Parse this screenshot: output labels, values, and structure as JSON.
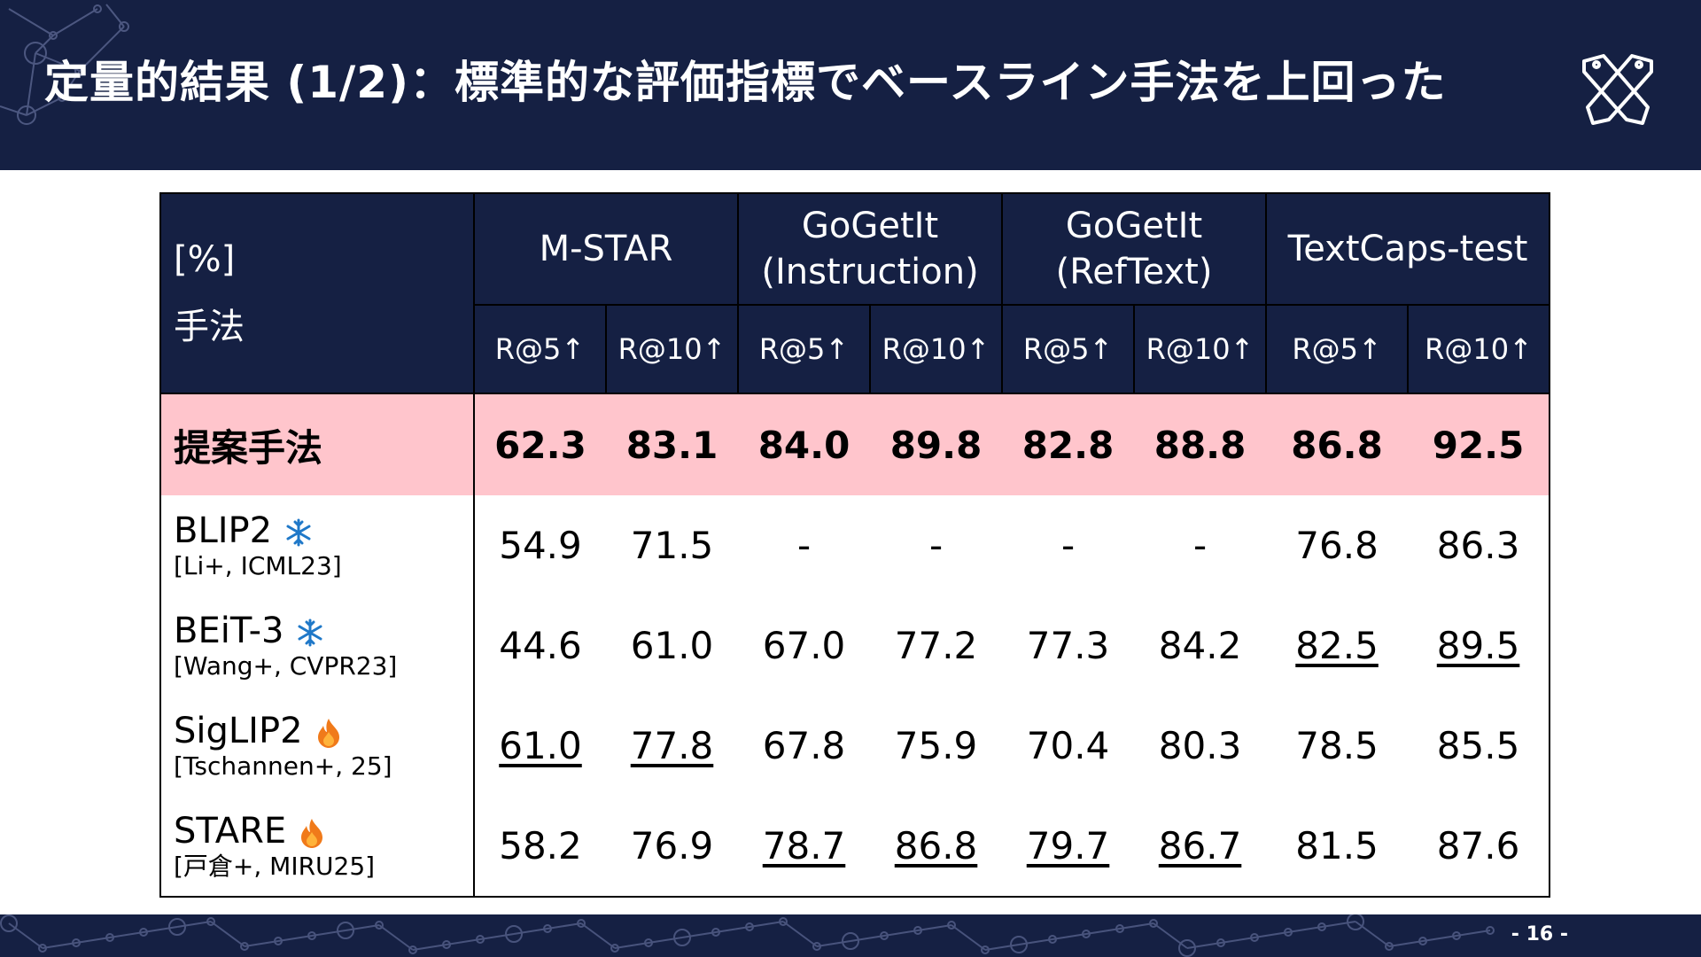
{
  "header": {
    "title": "定量的結果 (1/2)：標準的な評価指標でベースライン手法を上回った",
    "logo_icon": "crossed-tools-logo-icon"
  },
  "table": {
    "corner_unit": "[%]",
    "corner_label": "手法",
    "datasets": [
      {
        "name_line1": "M-STAR",
        "name_line2": ""
      },
      {
        "name_line1": "GoGetIt",
        "name_line2": "(Instruction)"
      },
      {
        "name_line1": "GoGetIt",
        "name_line2": "(RefText)"
      },
      {
        "name_line1": "TextCaps-test",
        "name_line2": ""
      }
    ],
    "metrics": [
      "R@5↑",
      "R@10↑",
      "R@5↑",
      "R@10↑",
      "R@5↑",
      "R@10↑",
      "R@5↑",
      "R@10↑"
    ],
    "proposed": {
      "name": "提案手法",
      "values": [
        "62.3",
        "83.1",
        "84.0",
        "89.8",
        "82.8",
        "88.8",
        "86.8",
        "92.5"
      ]
    },
    "baselines": [
      {
        "name": "BLIP2",
        "ref": "[Li+, ICML23]",
        "status_icon": "snowflake-icon",
        "values": [
          "54.9",
          "71.5",
          "-",
          "-",
          "-",
          "-",
          "76.8",
          "86.3"
        ],
        "underlined": [
          false,
          false,
          false,
          false,
          false,
          false,
          false,
          false
        ]
      },
      {
        "name": "BEiT-3",
        "ref": "[Wang+, CVPR23]",
        "status_icon": "snowflake-icon",
        "values": [
          "44.6",
          "61.0",
          "67.0",
          "77.2",
          "77.3",
          "84.2",
          "82.5",
          "89.5"
        ],
        "underlined": [
          false,
          false,
          false,
          false,
          false,
          false,
          true,
          true
        ]
      },
      {
        "name": "SigLIP2",
        "ref": "[Tschannen+, 25]",
        "status_icon": "fire-icon",
        "values": [
          "61.0",
          "77.8",
          "67.8",
          "75.9",
          "70.4",
          "80.3",
          "78.5",
          "85.5"
        ],
        "underlined": [
          true,
          true,
          false,
          false,
          false,
          false,
          false,
          false
        ]
      },
      {
        "name": "STARE",
        "ref": "[戸倉+, MIRU25]",
        "status_icon": "fire-icon",
        "values": [
          "58.2",
          "76.9",
          "78.7",
          "86.8",
          "79.7",
          "86.7",
          "81.5",
          "87.6"
        ],
        "underlined": [
          false,
          false,
          true,
          true,
          true,
          true,
          false,
          false
        ]
      }
    ]
  },
  "footer": {
    "page_number": "- 16 -"
  },
  "colors": {
    "navy": "#152043",
    "highlight_row": "#ffc5cc",
    "snowflake": "#1f78c8",
    "fire": "#f07a1a"
  }
}
